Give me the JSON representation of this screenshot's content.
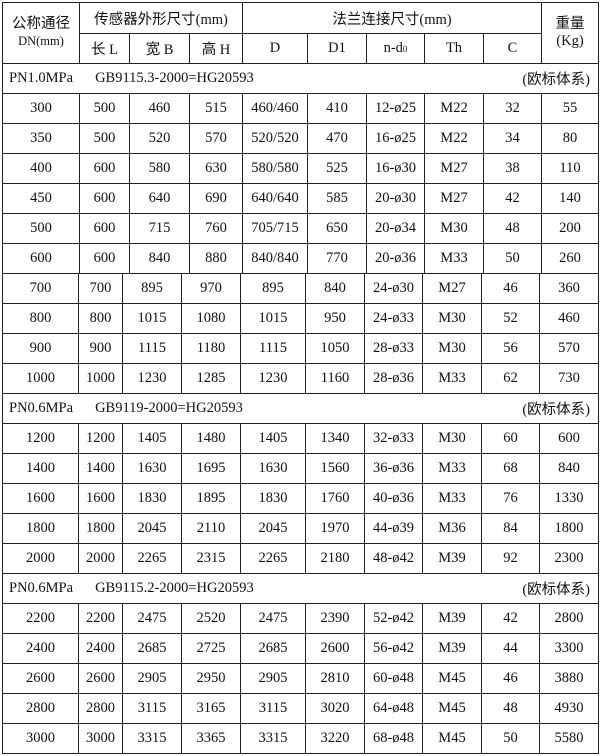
{
  "header": {
    "dn_label": "公称通径",
    "dn_unit": "DN(mm)",
    "sensor_group": "传感器外形尺寸(mm)",
    "flange_group": "法兰连接尺寸(mm)",
    "weight_label": "重量",
    "weight_unit": "(Kg)",
    "columns": [
      "长 L",
      "宽 B",
      "高 H",
      "D",
      "D1",
      "n-d",
      "Th",
      "C"
    ],
    "nd_subscript": "0"
  },
  "sections": [
    {
      "pressure": "PN1.0MPa",
      "standard": "GB9115.3-2000=HG20593",
      "system": "(欧标体系)",
      "rows": [
        [
          "300",
          "500",
          "460",
          "515",
          "460/460",
          "410",
          "12-ø25",
          "M22",
          "32",
          "55"
        ],
        [
          "350",
          "500",
          "520",
          "570",
          "520/520",
          "470",
          "16-ø25",
          "M22",
          "34",
          "80"
        ],
        [
          "400",
          "600",
          "580",
          "630",
          "580/580",
          "525",
          "16-ø30",
          "M27",
          "38",
          "110"
        ],
        [
          "450",
          "600",
          "640",
          "690",
          "640/640",
          "585",
          "20-ø30",
          "M27",
          "42",
          "140"
        ],
        [
          "500",
          "600",
          "715",
          "760",
          "705/715",
          "650",
          "20-ø34",
          "M30",
          "48",
          "200"
        ],
        [
          "600",
          "600",
          "840",
          "880",
          "840/840",
          "770",
          "20-ø36",
          "M33",
          "50",
          "260"
        ],
        [
          "700",
          "700",
          "895",
          "970",
          "895",
          "840",
          "24-ø30",
          "M27",
          "46",
          "360"
        ],
        [
          "800",
          "800",
          "1015",
          "1080",
          "1015",
          "950",
          "24-ø33",
          "M30",
          "52",
          "460"
        ],
        [
          "900",
          "900",
          "1115",
          "1180",
          "1115",
          "1050",
          "28-ø33",
          "M30",
          "56",
          "570"
        ],
        [
          "1000",
          "1000",
          "1230",
          "1285",
          "1230",
          "1160",
          "28-ø36",
          "M33",
          "62",
          "730"
        ]
      ]
    },
    {
      "pressure": "PN0.6MPa",
      "standard": "GB9119-2000=HG20593",
      "system": "(欧标体系)",
      "rows": [
        [
          "1200",
          "1200",
          "1405",
          "1480",
          "1405",
          "1340",
          "32-ø33",
          "M30",
          "60",
          "600"
        ],
        [
          "1400",
          "1400",
          "1630",
          "1695",
          "1630",
          "1560",
          "36-ø36",
          "M33",
          "68",
          "840"
        ],
        [
          "1600",
          "1600",
          "1830",
          "1895",
          "1830",
          "1760",
          "40-ø36",
          "M33",
          "76",
          "1330"
        ],
        [
          "1800",
          "1800",
          "2045",
          "2110",
          "2045",
          "1970",
          "44-ø39",
          "M36",
          "84",
          "1800"
        ],
        [
          "2000",
          "2000",
          "2265",
          "2315",
          "2265",
          "2180",
          "48-ø42",
          "M39",
          "92",
          "2300"
        ]
      ]
    },
    {
      "pressure": "PN0.6MPa",
      "standard": "GB9115.2-2000=HG20593",
      "system": "(欧标体系)",
      "rows": [
        [
          "2200",
          "2200",
          "2475",
          "2520",
          "2475",
          "2390",
          "52-ø42",
          "M39",
          "42",
          "2800"
        ],
        [
          "2400",
          "2400",
          "2685",
          "2725",
          "2685",
          "2600",
          "56-ø42",
          "M39",
          "44",
          "3300"
        ],
        [
          "2600",
          "2600",
          "2905",
          "2950",
          "2905",
          "2810",
          "60-ø48",
          "M45",
          "46",
          "3880"
        ],
        [
          "2800",
          "2800",
          "3115",
          "3165",
          "3115",
          "3020",
          "64-ø48",
          "M45",
          "48",
          "4930"
        ],
        [
          "3000",
          "3000",
          "3315",
          "3365",
          "3315",
          "3220",
          "68-ø48",
          "M45",
          "50",
          "5580"
        ]
      ]
    }
  ]
}
